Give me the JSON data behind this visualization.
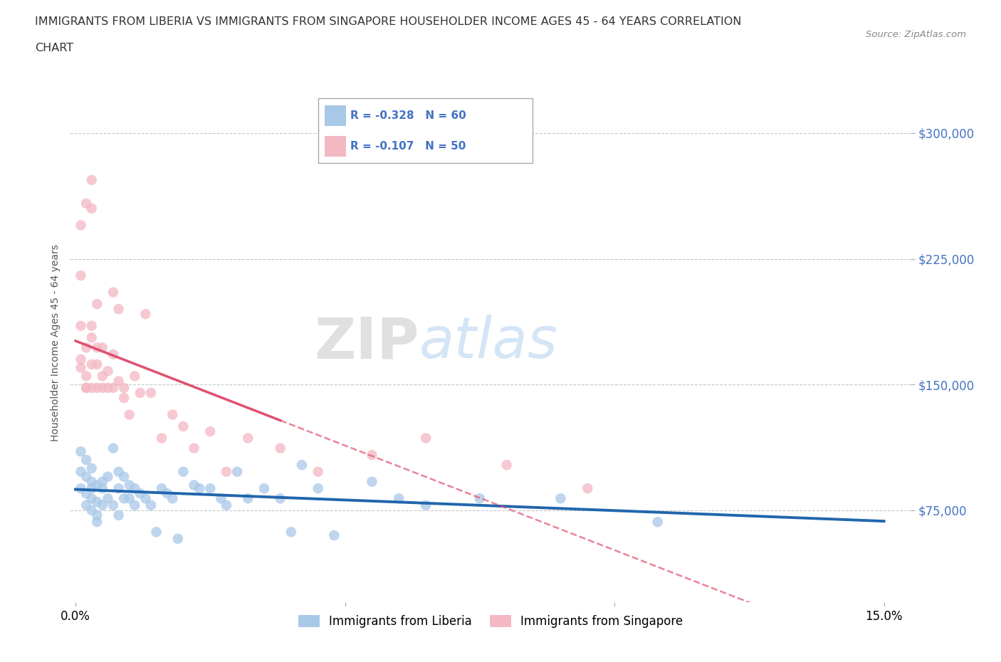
{
  "title_line1": "IMMIGRANTS FROM LIBERIA VS IMMIGRANTS FROM SINGAPORE HOUSEHOLDER INCOME AGES 45 - 64 YEARS CORRELATION",
  "title_line2": "CHART",
  "source": "Source: ZipAtlas.com",
  "ylabel": "Householder Income Ages 45 - 64 years",
  "xlim": [
    -0.001,
    0.155
  ],
  "ylim": [
    20000,
    330000
  ],
  "yticks": [
    75000,
    150000,
    225000,
    300000
  ],
  "ytick_labels": [
    "$75,000",
    "$150,000",
    "$225,000",
    "$300,000"
  ],
  "xticks": [
    0.0,
    0.05,
    0.1,
    0.15
  ],
  "xtick_labels": [
    "0.0%",
    "",
    "",
    "15.0%"
  ],
  "liberia_R": -0.328,
  "liberia_N": 60,
  "singapore_R": -0.107,
  "singapore_N": 50,
  "liberia_color": "#a8c8e8",
  "singapore_color": "#f4b8c4",
  "liberia_line_color": "#2166ac",
  "singapore_line_solid_color": "#e05070",
  "singapore_line_dash_color": "#f4b8c4",
  "watermark_ZIP": "ZIP",
  "watermark_atlas": "atlas",
  "background_color": "#ffffff",
  "grid_color": "#c8c8c8",
  "liberia_x": [
    0.001,
    0.001,
    0.001,
    0.002,
    0.002,
    0.002,
    0.002,
    0.003,
    0.003,
    0.003,
    0.003,
    0.003,
    0.004,
    0.004,
    0.004,
    0.004,
    0.005,
    0.005,
    0.005,
    0.006,
    0.006,
    0.007,
    0.007,
    0.008,
    0.008,
    0.008,
    0.009,
    0.009,
    0.01,
    0.01,
    0.011,
    0.011,
    0.012,
    0.013,
    0.014,
    0.015,
    0.016,
    0.017,
    0.018,
    0.019,
    0.02,
    0.022,
    0.023,
    0.025,
    0.027,
    0.028,
    0.03,
    0.032,
    0.035,
    0.038,
    0.04,
    0.042,
    0.045,
    0.048,
    0.055,
    0.06,
    0.065,
    0.075,
    0.09,
    0.108
  ],
  "liberia_y": [
    110000,
    98000,
    88000,
    105000,
    95000,
    85000,
    78000,
    92000,
    88000,
    100000,
    82000,
    75000,
    90000,
    80000,
    72000,
    68000,
    88000,
    78000,
    92000,
    95000,
    82000,
    112000,
    78000,
    88000,
    72000,
    98000,
    95000,
    82000,
    90000,
    82000,
    88000,
    78000,
    85000,
    82000,
    78000,
    62000,
    88000,
    85000,
    82000,
    58000,
    98000,
    90000,
    88000,
    88000,
    82000,
    78000,
    98000,
    82000,
    88000,
    82000,
    62000,
    102000,
    88000,
    60000,
    92000,
    82000,
    78000,
    82000,
    82000,
    68000
  ],
  "singapore_x": [
    0.001,
    0.001,
    0.001,
    0.001,
    0.001,
    0.002,
    0.002,
    0.002,
    0.002,
    0.002,
    0.003,
    0.003,
    0.003,
    0.003,
    0.003,
    0.003,
    0.004,
    0.004,
    0.004,
    0.004,
    0.005,
    0.005,
    0.005,
    0.006,
    0.006,
    0.007,
    0.007,
    0.007,
    0.008,
    0.008,
    0.009,
    0.009,
    0.01,
    0.011,
    0.012,
    0.013,
    0.014,
    0.016,
    0.018,
    0.02,
    0.022,
    0.025,
    0.028,
    0.032,
    0.038,
    0.045,
    0.055,
    0.065,
    0.08,
    0.095
  ],
  "singapore_y": [
    160000,
    185000,
    215000,
    245000,
    165000,
    155000,
    148000,
    172000,
    258000,
    148000,
    272000,
    255000,
    185000,
    162000,
    148000,
    178000,
    162000,
    148000,
    172000,
    198000,
    155000,
    148000,
    172000,
    148000,
    158000,
    148000,
    168000,
    205000,
    152000,
    195000,
    148000,
    142000,
    132000,
    155000,
    145000,
    192000,
    145000,
    118000,
    132000,
    125000,
    112000,
    122000,
    98000,
    118000,
    112000,
    98000,
    108000,
    118000,
    102000,
    88000
  ],
  "singapore_line_xmax_solid": 0.038,
  "singapore_line_xmax_dash": 0.155
}
